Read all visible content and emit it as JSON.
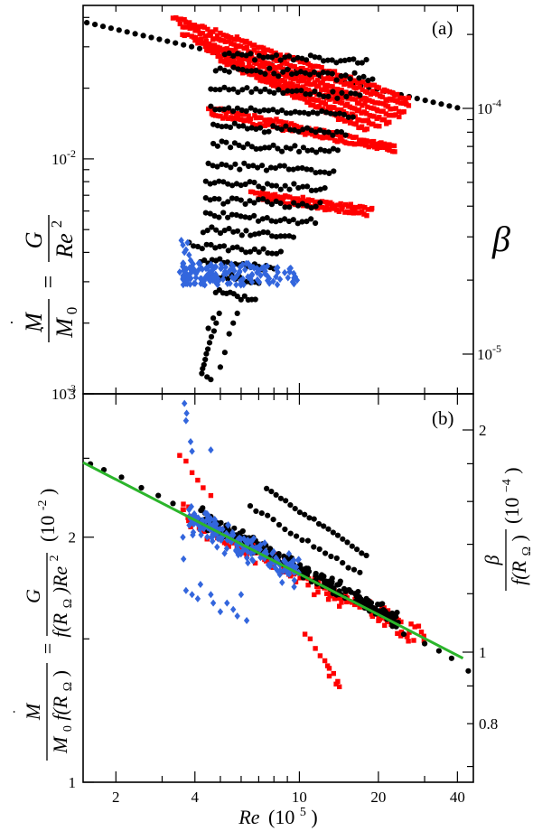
{
  "chart_data": [
    {
      "panel_label": "(a)",
      "type": "scatter",
      "xscale": "log",
      "yscale": "log",
      "xlim": [
        1.5,
        46
      ],
      "ylim": [
        0.001,
        0.045
      ],
      "ylabel_parts": {
        "lhs_num": "M",
        "lhs_den": "M",
        "den_sub": "0",
        "eq": "=",
        "rhs_num": "G",
        "rhs_den": "Re",
        "rhs_sup": "2"
      },
      "y_ticks": [
        {
          "value": 0.01,
          "base": "10",
          "exp": "-2"
        },
        {
          "value": 0.001,
          "base": "10",
          "exp": "-3"
        }
      ],
      "right_axis": {
        "label": "β",
        "ticks": [
          {
            "value": 0.0001,
            "base": "10",
            "exp": "-4"
          },
          {
            "value": 1e-05,
            "base": "10",
            "exp": "-5"
          }
        ]
      },
      "series": [
        {
          "name": "black dots",
          "color": "#000000",
          "marker": "circle",
          "reference_line": [
            [
              1.55,
              0.038
            ],
            [
              40,
              0.0165
            ]
          ],
          "rows": [
            {
              "y": 0.028,
              "x0": 5.2,
              "x1": 18.0,
              "n": 34
            },
            {
              "y": 0.024,
              "x0": 4.8,
              "x1": 19.0,
              "n": 36
            },
            {
              "y": 0.02,
              "x0": 4.6,
              "x1": 17.0,
              "n": 34
            },
            {
              "y": 0.0165,
              "x0": 4.6,
              "x1": 16.0,
              "n": 33
            },
            {
              "y": 0.0138,
              "x0": 4.7,
              "x1": 15.0,
              "n": 32
            },
            {
              "y": 0.0115,
              "x0": 4.7,
              "x1": 14.0,
              "n": 30
            },
            {
              "y": 0.0095,
              "x0": 4.5,
              "x1": 13.5,
              "n": 29
            },
            {
              "y": 0.008,
              "x0": 4.4,
              "x1": 12.5,
              "n": 28
            },
            {
              "y": 0.0068,
              "x0": 4.4,
              "x1": 12.0,
              "n": 27
            },
            {
              "y": 0.0058,
              "x0": 4.4,
              "x1": 11.5,
              "n": 26
            },
            {
              "y": 0.005,
              "x0": 4.3,
              "x1": 9.5,
              "n": 22
            },
            {
              "y": 0.0043,
              "x0": 3.8,
              "x1": 8.5,
              "n": 22
            },
            {
              "y": 0.0037,
              "x0": 4.2,
              "x1": 8.0,
              "n": 20
            },
            {
              "y": 0.0032,
              "x0": 4.5,
              "x1": 7.0,
              "n": 14
            },
            {
              "y": 0.0027,
              "x0": 4.8,
              "x1": 6.8,
              "n": 12
            }
          ],
          "tail_points": [
            [
              4.95,
              0.0022
            ],
            [
              4.82,
              0.002
            ],
            [
              4.73,
              0.00185
            ],
            [
              4.62,
              0.00175
            ],
            [
              4.55,
              0.00165
            ],
            [
              4.48,
              0.00155
            ],
            [
              4.42,
              0.00148
            ],
            [
              4.38,
              0.0014
            ],
            [
              4.33,
              0.00133
            ],
            [
              4.28,
              0.00128
            ],
            [
              4.25,
              0.00122
            ],
            [
              4.45,
              0.00118
            ],
            [
              4.6,
              0.00115
            ],
            [
              5.0,
              0.0013
            ],
            [
              5.2,
              0.0015
            ],
            [
              5.4,
              0.0018
            ],
            [
              5.6,
              0.002
            ],
            [
              5.8,
              0.0022
            ],
            [
              4.7,
              0.0021
            ],
            [
              4.5,
              0.0019
            ]
          ]
        },
        {
          "name": "red squares",
          "color": "#ff0000",
          "marker": "square",
          "strips": [
            {
              "x0": 3.3,
              "y0": 0.04,
              "x1": 26.0,
              "y1": 0.018,
              "n": 90
            },
            {
              "x0": 3.5,
              "y0": 0.037,
              "x1": 26.0,
              "y1": 0.0168,
              "n": 90
            },
            {
              "x0": 3.6,
              "y0": 0.034,
              "x1": 25.0,
              "y1": 0.0158,
              "n": 85
            },
            {
              "x0": 4.0,
              "y0": 0.0315,
              "x1": 24.0,
              "y1": 0.015,
              "n": 80
            },
            {
              "x0": 4.4,
              "y0": 0.029,
              "x1": 22.0,
              "y1": 0.0143,
              "n": 75
            },
            {
              "x0": 5.0,
              "y0": 0.0265,
              "x1": 20.0,
              "y1": 0.0137,
              "n": 70
            },
            {
              "x0": 6.0,
              "y0": 0.024,
              "x1": 18.0,
              "y1": 0.0132,
              "n": 60
            },
            {
              "x0": 4.5,
              "y0": 0.0165,
              "x1": 23.0,
              "y1": 0.0113,
              "n": 75
            },
            {
              "x0": 4.6,
              "y0": 0.0155,
              "x1": 23.0,
              "y1": 0.0108,
              "n": 75
            },
            {
              "x0": 6.5,
              "y0": 0.0072,
              "x1": 19.0,
              "y1": 0.0061,
              "n": 50
            },
            {
              "x0": 7.0,
              "y0": 0.0068,
              "x1": 18.0,
              "y1": 0.0058,
              "n": 45
            }
          ]
        },
        {
          "name": "blue diamonds",
          "color": "#3366dd",
          "marker": "diamond",
          "cluster": {
            "x0": 3.6,
            "x1": 10.0,
            "y0": 0.0029,
            "y1": 0.0036,
            "n": 160
          },
          "extra_points": [
            [
              3.55,
              0.0045
            ],
            [
              3.6,
              0.0043
            ],
            [
              3.7,
              0.0041
            ],
            [
              3.8,
              0.0039
            ],
            [
              3.65,
              0.004
            ],
            [
              3.75,
              0.0044
            ],
            [
              3.85,
              0.0037
            ],
            [
              3.5,
              0.0033
            ],
            [
              3.6,
              0.0031
            ]
          ]
        }
      ]
    },
    {
      "panel_label": "(b)",
      "type": "scatter",
      "xscale": "log",
      "yscale": "log",
      "xlim": [
        1.5,
        46
      ],
      "ylim": [
        1.0,
        3.0
      ],
      "xlabel_parts": {
        "var": "Re",
        "unit": "(10",
        "unit_exp": "5",
        "close": ")"
      },
      "x_ticks": [
        {
          "value": 2,
          "label": "2"
        },
        {
          "value": 4,
          "label": "4"
        },
        {
          "value": 10,
          "label": "10"
        },
        {
          "value": 20,
          "label": "20"
        },
        {
          "value": 40,
          "label": "40"
        }
      ],
      "y_ticks": [
        {
          "value": 1,
          "label": "1"
        },
        {
          "value": 2,
          "label": "2"
        },
        {
          "value": 3,
          "label": "3"
        }
      ],
      "ylabel_parts": {
        "lhs_num": "M",
        "lhs_den_a": "M",
        "den_sub": "0",
        "lhs_den_b": "f(R",
        "omega": "Ω",
        "close": ")",
        "eq": "=",
        "rhs_num": "G",
        "rhs_den_a": "f(R",
        "rhs_den_b": ")Re",
        "rhs_sup": "2",
        "unit": "(10",
        "unit_exp": "-2",
        "unit_close": ")"
      },
      "right_axis": {
        "label_parts": {
          "num": "β",
          "den_a": "f(R",
          "omega": "Ω",
          "den_b": ")",
          "unit": "(10",
          "unit_exp": "−4",
          "unit_close": ")"
        },
        "ticks": [
          {
            "value": 2.0,
            "label": "2"
          },
          {
            "value": 1.0,
            "label": "1"
          },
          {
            "value": 0.8,
            "label": "0.8"
          }
        ]
      },
      "fit_line": {
        "color": "#2bb52b",
        "x": [
          1.5,
          42
        ],
        "y": [
          2.47,
          1.42
        ]
      },
      "series": [
        {
          "name": "black dots",
          "color": "#000000",
          "marker": "circle",
          "line_points": [
            [
              1.6,
              2.46
            ],
            [
              1.8,
              2.42
            ],
            [
              2.1,
              2.37
            ],
            [
              2.5,
              2.3
            ],
            [
              2.9,
              2.25
            ],
            [
              3.3,
              2.2
            ],
            [
              25,
              1.52
            ],
            [
              30,
              1.48
            ],
            [
              34,
              1.45
            ],
            [
              38,
              1.42
            ],
            [
              44,
              1.37
            ]
          ],
          "band": {
            "x0": 4.2,
            "x1": 24.0,
            "n": 230
          },
          "arcs": [
            {
              "x0": 7.5,
              "y0": 2.3,
              "x1": 18.0,
              "y1": 1.9,
              "n": 22
            },
            {
              "x0": 6.5,
              "y0": 2.18,
              "x1": 17.0,
              "y1": 1.8,
              "n": 20
            }
          ]
        },
        {
          "name": "red squares",
          "color": "#ff0000",
          "marker": "square",
          "band": {
            "x0": 3.6,
            "x1": 30.0,
            "n": 200
          },
          "droop_points": [
            [
              11.5,
              1.46
            ],
            [
              12,
              1.43
            ],
            [
              12.5,
              1.41
            ],
            [
              13,
              1.38
            ],
            [
              13.5,
              1.36
            ],
            [
              14,
              1.33
            ],
            [
              14.2,
              1.31
            ],
            [
              11,
              1.5
            ],
            [
              10.5,
              1.52
            ],
            [
              13,
              1.35
            ],
            [
              13.8,
              1.32
            ],
            [
              12.8,
              1.39
            ]
          ],
          "upper_points": [
            [
              3.5,
              2.52
            ],
            [
              3.7,
              2.48
            ],
            [
              3.9,
              2.4
            ],
            [
              4.1,
              2.35
            ],
            [
              4.3,
              2.3
            ],
            [
              4.6,
              2.25
            ]
          ]
        },
        {
          "name": "blue diamonds",
          "color": "#3366dd",
          "marker": "diamond",
          "band": {
            "x0": 3.8,
            "x1": 10.0,
            "n": 180
          },
          "outliers": [
            [
              3.65,
              2.92
            ],
            [
              3.72,
              2.84
            ],
            [
              3.7,
              2.78
            ],
            [
              3.85,
              2.62
            ],
            [
              3.9,
              2.55
            ],
            [
              4.6,
              2.56
            ],
            [
              3.6,
              2.0
            ],
            [
              3.62,
              1.88
            ],
            [
              3.7,
              1.72
            ],
            [
              3.9,
              1.7
            ],
            [
              4.1,
              1.68
            ],
            [
              4.7,
              1.66
            ],
            [
              5.0,
              1.62
            ],
            [
              5.3,
              1.66
            ],
            [
              5.6,
              1.63
            ],
            [
              6.0,
              1.7
            ],
            [
              6.3,
              1.58
            ],
            [
              4.2,
              1.75
            ],
            [
              4.6,
              1.7
            ],
            [
              5.8,
              1.6
            ]
          ]
        }
      ]
    }
  ]
}
